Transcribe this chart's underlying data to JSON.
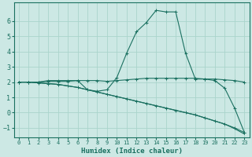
{
  "xlabel": "Humidex (Indice chaleur)",
  "bg_color": "#cce8e4",
  "grid_color": "#aad4cc",
  "line_color": "#1a7060",
  "xlim": [
    -0.5,
    23.5
  ],
  "ylim": [
    -1.6,
    7.2
  ],
  "yticks": [
    -1,
    0,
    1,
    2,
    3,
    4,
    5,
    6
  ],
  "xticks": [
    0,
    1,
    2,
    3,
    4,
    5,
    6,
    7,
    8,
    9,
    10,
    11,
    12,
    13,
    14,
    15,
    16,
    17,
    18,
    19,
    20,
    21,
    22,
    23
  ],
  "line1_x": [
    0,
    1,
    2,
    3,
    4,
    5,
    6,
    7,
    8,
    9,
    10,
    11,
    12,
    13,
    14,
    15,
    16,
    17,
    18,
    19,
    20,
    21,
    22,
    23
  ],
  "line1_y": [
    2.0,
    2.0,
    2.0,
    2.05,
    2.05,
    2.05,
    2.1,
    2.1,
    2.1,
    2.05,
    2.1,
    2.15,
    2.2,
    2.25,
    2.25,
    2.25,
    2.25,
    2.25,
    2.25,
    2.2,
    2.2,
    2.15,
    2.1,
    2.0
  ],
  "line2_x": [
    0,
    1,
    2,
    3,
    4,
    5,
    6,
    7,
    8,
    9,
    10,
    11,
    12,
    13,
    14,
    15,
    16,
    17,
    18,
    19,
    20,
    21,
    22,
    23
  ],
  "line2_y": [
    2.0,
    2.0,
    2.0,
    2.1,
    2.1,
    2.1,
    2.1,
    1.5,
    1.4,
    1.5,
    2.3,
    3.9,
    5.3,
    5.9,
    6.7,
    6.6,
    6.6,
    3.9,
    2.2,
    2.2,
    2.1,
    1.6,
    0.3,
    -1.3
  ],
  "line3_x": [
    0,
    1,
    2,
    3,
    4,
    5,
    6,
    7,
    8,
    9,
    10,
    11,
    12,
    13,
    14,
    15,
    16,
    17,
    18,
    19,
    20,
    21,
    22,
    23
  ],
  "line3_y": [
    2.0,
    2.0,
    1.95,
    1.9,
    1.85,
    1.75,
    1.65,
    1.5,
    1.35,
    1.2,
    1.05,
    0.9,
    0.75,
    0.6,
    0.45,
    0.3,
    0.15,
    0.0,
    -0.15,
    -0.35,
    -0.55,
    -0.75,
    -1.0,
    -1.3
  ],
  "line4_x": [
    0,
    1,
    2,
    3,
    4,
    5,
    6,
    7,
    8,
    9,
    10,
    11,
    12,
    13,
    14,
    15,
    16,
    17,
    18,
    19,
    20,
    21,
    22,
    23
  ],
  "line4_y": [
    2.0,
    2.0,
    1.95,
    1.9,
    1.85,
    1.75,
    1.65,
    1.5,
    1.35,
    1.2,
    1.05,
    0.9,
    0.75,
    0.6,
    0.45,
    0.3,
    0.15,
    0.0,
    -0.15,
    -0.35,
    -0.55,
    -0.75,
    -1.05,
    -1.4
  ]
}
